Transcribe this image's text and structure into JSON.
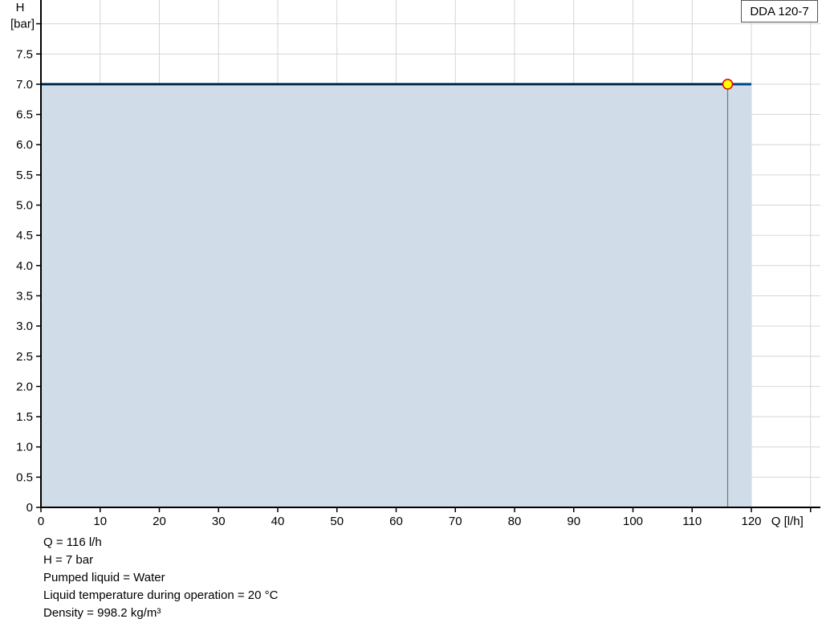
{
  "chart_data": {
    "type": "area",
    "xlabel": "Q [l/h]",
    "ylabel_line1": "H",
    "ylabel_line2": "[bar]",
    "xlim": [
      0,
      130
    ],
    "ylim": [
      0,
      8
    ],
    "x_ticks": [
      "0",
      "10",
      "20",
      "30",
      "40",
      "50",
      "60",
      "70",
      "80",
      "90",
      "100",
      "110",
      "120"
    ],
    "y_ticks": [
      "0",
      "0.5",
      "1.0",
      "1.5",
      "2.0",
      "2.5",
      "3.0",
      "3.5",
      "4.0",
      "4.5",
      "5.0",
      "5.5",
      "6.0",
      "6.5",
      "7.0",
      "7.5"
    ],
    "grid": true,
    "legend_position": "top-right",
    "series": [
      {
        "name": "DDA 120-7",
        "x": [
          0,
          120
        ],
        "y": [
          7,
          7
        ],
        "color": "#004b87",
        "fill": "#d0dce7"
      }
    ],
    "operating_point": {
      "x": 116,
      "y": 7,
      "fill": "#ffff00",
      "stroke": "#e00000"
    }
  },
  "info": [
    "Q = 116 l/h",
    "H = 7 bar",
    "Pumped liquid = Water",
    "Liquid temperature during operation = 20 °C",
    "Density = 998.2 kg/m³"
  ]
}
